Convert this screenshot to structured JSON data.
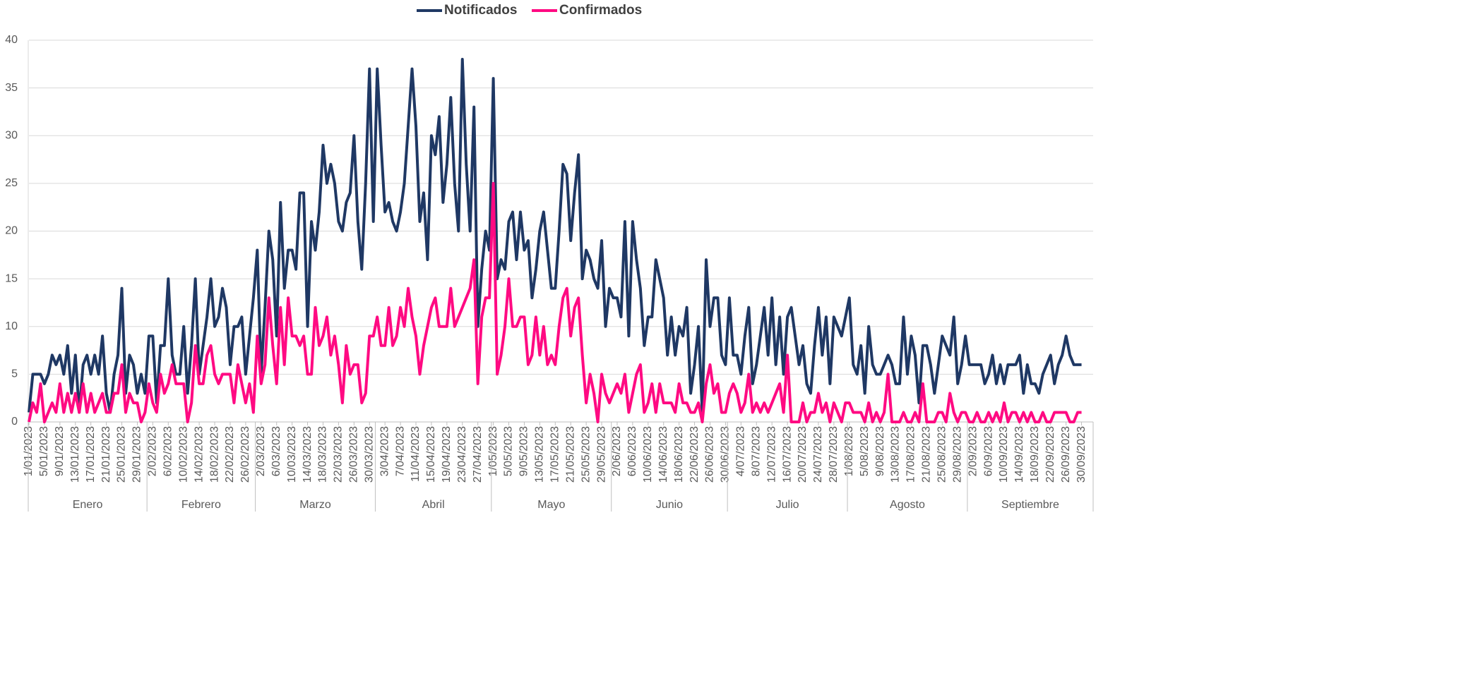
{
  "chart_data": {
    "type": "line",
    "categories": [
      "1/01/2023",
      null,
      null,
      null,
      "5/01/2023",
      null,
      null,
      null,
      "9/01/2023",
      null,
      null,
      null,
      "13/01/2023",
      null,
      null,
      null,
      "17/01/2023",
      null,
      null,
      null,
      "21/01/2023",
      null,
      null,
      null,
      "25/01/2023",
      null,
      null,
      null,
      "29/01/2023",
      null,
      null,
      null,
      "2/02/2023",
      null,
      null,
      null,
      "6/02/2023",
      null,
      null,
      null,
      "10/02/2023",
      null,
      null,
      null,
      "14/02/2023",
      null,
      null,
      null,
      "18/02/2023",
      null,
      null,
      null,
      "22/02/2023",
      null,
      null,
      null,
      "26/02/2023",
      null,
      null,
      null,
      "2/03/2023",
      null,
      null,
      null,
      "6/03/2023",
      null,
      null,
      null,
      "10/03/2023",
      null,
      null,
      null,
      "14/03/2023",
      null,
      null,
      null,
      "18/03/2023",
      null,
      null,
      null,
      "22/03/2023",
      null,
      null,
      null,
      "26/03/2023",
      null,
      null,
      null,
      "30/03/2023",
      null,
      null,
      null,
      "3/04/2023",
      null,
      null,
      null,
      "7/04/2023",
      null,
      null,
      null,
      "11/04/2023",
      null,
      null,
      null,
      "15/04/2023",
      null,
      null,
      null,
      "19/04/2023",
      null,
      null,
      null,
      "23/04/2023",
      null,
      null,
      null,
      "27/04/2023",
      null,
      null,
      null,
      "1/05/2023",
      null,
      null,
      null,
      "5/05/2023",
      null,
      null,
      null,
      "9/05/2023",
      null,
      null,
      null,
      "13/05/2023",
      null,
      null,
      null,
      "17/05/2023",
      null,
      null,
      null,
      "21/05/2023",
      null,
      null,
      null,
      "25/05/2023",
      null,
      null,
      null,
      "29/05/2023",
      null,
      null,
      null,
      "2/06/2023",
      null,
      null,
      null,
      "6/06/2023",
      null,
      null,
      null,
      "10/06/2023",
      null,
      null,
      null,
      "14/06/2023",
      null,
      null,
      null,
      "18/06/2023",
      null,
      null,
      null,
      "22/06/2023",
      null,
      null,
      null,
      "26/06/2023",
      null,
      null,
      null,
      "30/06/2023",
      null,
      null,
      null,
      "4/07/2023",
      null,
      null,
      null,
      "8/07/2023",
      null,
      null,
      null,
      "12/07/2023",
      null,
      null,
      null,
      "16/07/2023",
      null,
      null,
      null,
      "20/07/2023",
      null,
      null,
      null,
      "24/07/2023",
      null,
      null,
      null,
      "28/07/2023",
      null,
      null,
      null,
      "1/08/2023",
      null,
      null,
      null,
      "5/08/2023",
      null,
      null,
      null,
      "9/08/2023",
      null,
      null,
      null,
      "13/08/2023",
      null,
      null,
      null,
      "17/08/2023",
      null,
      null,
      null,
      "21/08/2023",
      null,
      null,
      null,
      "25/08/2023",
      null,
      null,
      null,
      "29/08/2023",
      null,
      null,
      null,
      "2/09/2023",
      null,
      null,
      null,
      "6/09/2023",
      null,
      null,
      null,
      "10/09/2023",
      null,
      null,
      null,
      "14/09/2023",
      null,
      null,
      null,
      "18/09/2023",
      null,
      null,
      null,
      "22/09/2023",
      null,
      null,
      null,
      "26/09/2023",
      null,
      null,
      null,
      "30/09/2023"
    ],
    "months": [
      "Enero",
      "Febrero",
      "Marzo",
      "Abril",
      "Mayo",
      "Junio",
      "Julio",
      "Agosto",
      "Septiembre"
    ],
    "series": [
      {
        "name": "Notificados",
        "color": "#1f3864",
        "values": [
          1,
          5,
          5,
          5,
          4,
          5,
          7,
          6,
          7,
          5,
          8,
          3,
          7,
          1,
          6,
          7,
          5,
          7,
          5,
          9,
          3,
          1,
          5,
          7,
          14,
          3,
          7,
          6,
          3,
          5,
          3,
          9,
          9,
          2,
          8,
          8,
          15,
          7,
          5,
          5,
          10,
          3,
          8,
          15,
          5,
          8,
          11,
          15,
          10,
          11,
          14,
          12,
          6,
          10,
          10,
          11,
          5,
          9,
          13,
          18,
          5,
          12,
          20,
          17,
          9,
          23,
          14,
          18,
          18,
          16,
          24,
          24,
          10,
          21,
          18,
          22,
          29,
          25,
          27,
          25,
          21,
          20,
          23,
          24,
          30,
          21,
          16,
          25,
          37,
          21,
          37,
          29,
          22,
          23,
          21,
          20,
          22,
          25,
          31,
          37,
          31,
          21,
          24,
          17,
          30,
          28,
          32,
          23,
          27,
          34,
          25,
          20,
          38,
          27,
          20,
          33,
          10,
          16,
          20,
          18,
          36,
          15,
          17,
          16,
          21,
          22,
          17,
          22,
          18,
          19,
          13,
          16,
          20,
          22,
          18,
          14,
          14,
          20,
          27,
          26,
          19,
          24,
          28,
          15,
          18,
          17,
          15,
          14,
          19,
          10,
          14,
          13,
          13,
          11,
          21,
          9,
          21,
          17,
          14,
          8,
          11,
          11,
          17,
          15,
          13,
          7,
          11,
          7,
          10,
          9,
          12,
          3,
          6,
          10,
          1,
          17,
          10,
          13,
          13,
          7,
          6,
          13,
          7,
          7,
          5,
          9,
          12,
          4,
          6,
          9,
          12,
          7,
          13,
          6,
          11,
          5,
          11,
          12,
          9,
          6,
          8,
          4,
          3,
          8,
          12,
          7,
          11,
          4,
          11,
          10,
          9,
          11,
          13,
          6,
          5,
          8,
          3,
          10,
          6,
          5,
          5,
          6,
          7,
          6,
          4,
          4,
          11,
          5,
          9,
          7,
          2,
          8,
          8,
          6,
          3,
          6,
          9,
          8,
          7,
          11,
          4,
          6,
          9,
          6,
          6,
          6,
          6,
          4,
          5,
          7,
          4,
          6,
          4,
          6,
          6,
          6,
          7,
          3,
          6,
          4,
          4,
          3,
          5,
          6,
          7,
          4,
          6,
          7,
          9,
          7,
          6,
          6,
          6
        ]
      },
      {
        "name": "Confirmados",
        "color": "#ff0a82",
        "values": [
          0,
          2,
          1,
          4,
          0,
          1,
          2,
          1,
          4,
          1,
          3,
          1,
          3,
          1,
          4,
          1,
          3,
          1,
          2,
          3,
          1,
          1,
          3,
          3,
          6,
          1,
          3,
          2,
          2,
          0,
          1,
          4,
          2,
          1,
          5,
          3,
          4,
          6,
          4,
          4,
          4,
          0,
          2,
          8,
          4,
          4,
          7,
          8,
          5,
          4,
          5,
          5,
          5,
          2,
          6,
          4,
          2,
          4,
          1,
          9,
          4,
          6,
          13,
          8,
          4,
          12,
          6,
          13,
          9,
          9,
          8,
          9,
          5,
          5,
          12,
          8,
          9,
          11,
          7,
          9,
          6,
          2,
          8,
          5,
          6,
          6,
          2,
          3,
          9,
          9,
          11,
          8,
          8,
          12,
          8,
          9,
          12,
          10,
          14,
          11,
          9,
          5,
          8,
          10,
          12,
          13,
          10,
          10,
          10,
          14,
          10,
          11,
          12,
          13,
          14,
          17,
          4,
          11,
          13,
          13,
          25,
          5,
          7,
          10,
          15,
          10,
          10,
          11,
          11,
          6,
          7,
          11,
          7,
          10,
          6,
          7,
          6,
          10,
          13,
          14,
          9,
          12,
          13,
          7,
          2,
          5,
          3,
          0,
          5,
          3,
          2,
          3,
          4,
          3,
          5,
          1,
          3,
          5,
          6,
          1,
          2,
          4,
          1,
          4,
          2,
          2,
          2,
          1,
          4,
          2,
          2,
          1,
          1,
          2,
          0,
          4,
          6,
          3,
          4,
          1,
          1,
          3,
          4,
          3,
          1,
          2,
          5,
          1,
          2,
          1,
          2,
          1,
          2,
          3,
          4,
          1,
          7,
          0,
          0,
          0,
          2,
          0,
          1,
          1,
          3,
          1,
          2,
          0,
          2,
          1,
          0,
          2,
          2,
          1,
          1,
          1,
          0,
          2,
          0,
          1,
          0,
          1,
          5,
          0,
          0,
          0,
          1,
          0,
          0,
          1,
          0,
          4,
          0,
          0,
          0,
          1,
          1,
          0,
          3,
          1,
          0,
          1,
          1,
          0,
          0,
          1,
          0,
          0,
          1,
          0,
          1,
          0,
          2,
          0,
          1,
          1,
          0,
          1,
          0,
          1,
          0,
          0,
          1,
          0,
          0,
          1,
          1,
          1,
          1,
          0,
          0,
          1,
          1
        ]
      }
    ],
    "ylim": [
      0,
      40
    ],
    "yticks": [
      0,
      5,
      10,
      15,
      20,
      25,
      30,
      35,
      40
    ],
    "grid": true,
    "legend": "top"
  }
}
